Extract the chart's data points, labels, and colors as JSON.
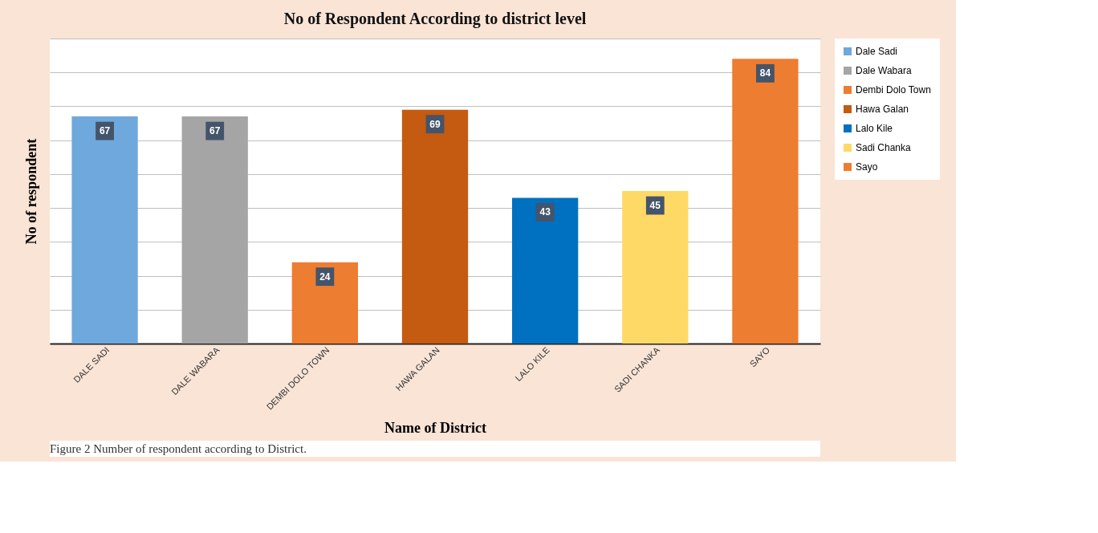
{
  "chart_data": {
    "type": "bar",
    "title": "No of Respondent According to district level",
    "xlabel": "Name of District",
    "ylabel": "No of respondent",
    "categories": [
      "DALE SADI",
      "DALE WABARA",
      "DEMBI DOLO TOWN",
      "HAWA GALAN",
      "LALO KILE",
      "SADI CHANKA",
      "SAYO"
    ],
    "series": [
      {
        "name": "Dale Sadi",
        "color": "#6fa8dc",
        "values": [
          67,
          null,
          null,
          null,
          null,
          null,
          null
        ]
      },
      {
        "name": "Dale Wabara",
        "color": "#a5a5a5",
        "values": [
          null,
          67,
          null,
          null,
          null,
          null,
          null
        ]
      },
      {
        "name": "Dembi Dolo Town",
        "color": "#ed7d31",
        "values": [
          null,
          null,
          24,
          null,
          null,
          null,
          null
        ]
      },
      {
        "name": "Hawa Galan",
        "color": "#c55a11",
        "values": [
          null,
          null,
          null,
          69,
          null,
          null,
          null
        ]
      },
      {
        "name": "Lalo Kile",
        "color": "#0070c0",
        "values": [
          null,
          null,
          null,
          null,
          43,
          null,
          null
        ]
      },
      {
        "name": "Sadi Chanka",
        "color": "#ffd966",
        "values": [
          null,
          null,
          null,
          null,
          null,
          45,
          null
        ]
      },
      {
        "name": "Sayo",
        "color": "#ed7d31",
        "values": [
          null,
          null,
          null,
          null,
          null,
          null,
          84
        ]
      }
    ],
    "ylim": [
      0,
      90
    ],
    "yticks": [
      {
        "value": 0,
        "label": null
      },
      {
        "value": 10,
        "label": null
      },
      {
        "value": 20,
        "label": null
      },
      {
        "value": 30,
        "label": null
      },
      {
        "value": 40,
        "label": null
      },
      {
        "value": 50,
        "label": null
      },
      {
        "value": 60,
        "label": null
      },
      {
        "value": 70,
        "label": null
      },
      {
        "value": 80,
        "label": null
      },
      {
        "value": 90,
        "label": null
      }
    ],
    "tick_labels": "x",
    "grid": "y",
    "legend": "right",
    "data_labels": true,
    "annotations": [
      "Figure 2 Number of respondent according to District."
    ]
  }
}
